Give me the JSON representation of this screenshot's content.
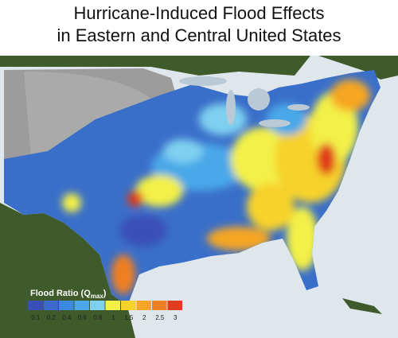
{
  "title": [
    "Hurricane-Induced Flood Effects",
    "in Eastern and Central United States"
  ],
  "legend": {
    "title_prefix": "Flood Ratio (Q",
    "title_subscript": "max",
    "title_suffix": ")",
    "colors": [
      "#3b4fb8",
      "#3a68cc",
      "#3a8ae0",
      "#4aa8e8",
      "#7fd0f0",
      "#f3f046",
      "#f6d22a",
      "#f5a623",
      "#f07f22",
      "#e03a1f"
    ],
    "ticks": [
      0.1,
      0.2,
      0.4,
      0.6,
      0.8,
      1,
      1.5,
      2,
      2.5,
      3
    ]
  }
}
